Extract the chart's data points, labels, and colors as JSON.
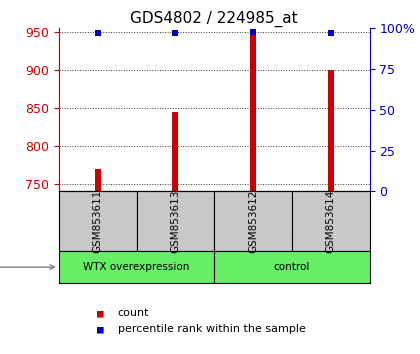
{
  "title": "GDS4802 / 224985_at",
  "samples": [
    "GSM853611",
    "GSM853613",
    "GSM853612",
    "GSM853614"
  ],
  "bar_values": [
    770,
    845,
    950,
    900
  ],
  "percentile_values": [
    97,
    97,
    98,
    97
  ],
  "ylim_left": [
    740,
    955
  ],
  "ylim_right": [
    0,
    100
  ],
  "yticks_left": [
    750,
    800,
    850,
    900,
    950
  ],
  "yticks_right": [
    0,
    25,
    50,
    75,
    100
  ],
  "bar_color": "#cc0000",
  "dot_color": "#0000cc",
  "bar_base": 740,
  "groups": [
    {
      "label": "WTX overexpression",
      "indices": [
        0,
        1
      ],
      "color": "#66ee66"
    },
    {
      "label": "control",
      "indices": [
        2,
        3
      ],
      "color": "#66ee66"
    }
  ],
  "group_label_bg": "#c8c8c8",
  "left_axis_color": "#cc0000",
  "right_axis_color": "#0000cc",
  "title_fontsize": 11,
  "tick_fontsize": 9,
  "legend_fontsize": 8,
  "bar_width": 0.08
}
